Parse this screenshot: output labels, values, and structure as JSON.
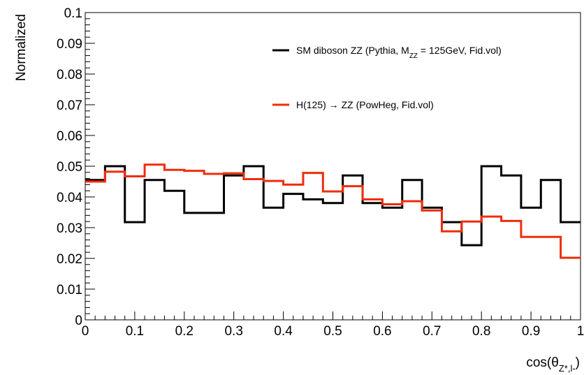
{
  "chart_data": {
    "type": "line",
    "style": "step-histogram",
    "xlabel": "cos(θZ*,l-)",
    "ylabel": "Normalized",
    "xlim": [
      0,
      1
    ],
    "ylim": [
      0,
      0.1
    ],
    "x_ticks": [
      "0",
      "0.1",
      "0.2",
      "0.3",
      "0.4",
      "0.5",
      "0.6",
      "0.7",
      "0.8",
      "0.9",
      "1"
    ],
    "y_ticks": [
      "0",
      "0.01",
      "0.02",
      "0.03",
      "0.04",
      "0.05",
      "0.06",
      "0.07",
      "0.08",
      "0.09",
      "0.1"
    ],
    "bin_edges": [
      0,
      0.04,
      0.08,
      0.12,
      0.16,
      0.2,
      0.24,
      0.28,
      0.32,
      0.36,
      0.4,
      0.44,
      0.48,
      0.52,
      0.56,
      0.6,
      0.64,
      0.68,
      0.72,
      0.76,
      0.8,
      0.84,
      0.88,
      0.92,
      0.96,
      1.0
    ],
    "grid": false,
    "legend_position": "top-right",
    "series": [
      {
        "name": "SM diboson ZZ (Pythia, MZZ = 125GeV, Fid.vol)",
        "color": "#000000",
        "values": [
          0.0455,
          0.05,
          0.0318,
          0.0455,
          0.042,
          0.0348,
          0.0348,
          0.047,
          0.05,
          0.0365,
          0.041,
          0.0392,
          0.038,
          0.047,
          0.038,
          0.0365,
          0.0455,
          0.0365,
          0.0318,
          0.0243,
          0.05,
          0.047,
          0.0365,
          0.0455,
          0.0318
        ]
      },
      {
        "name": "H(125) → ZZ (PowHeg, Fid.vol)",
        "color": "#ee2d0c",
        "values": [
          0.045,
          0.0482,
          0.0467,
          0.0505,
          0.0488,
          0.0485,
          0.0475,
          0.0477,
          0.0458,
          0.0452,
          0.044,
          0.0478,
          0.0418,
          0.0435,
          0.0392,
          0.0376,
          0.0386,
          0.0356,
          0.0288,
          0.032,
          0.0336,
          0.0322,
          0.027,
          0.027,
          0.0202
        ]
      }
    ]
  }
}
